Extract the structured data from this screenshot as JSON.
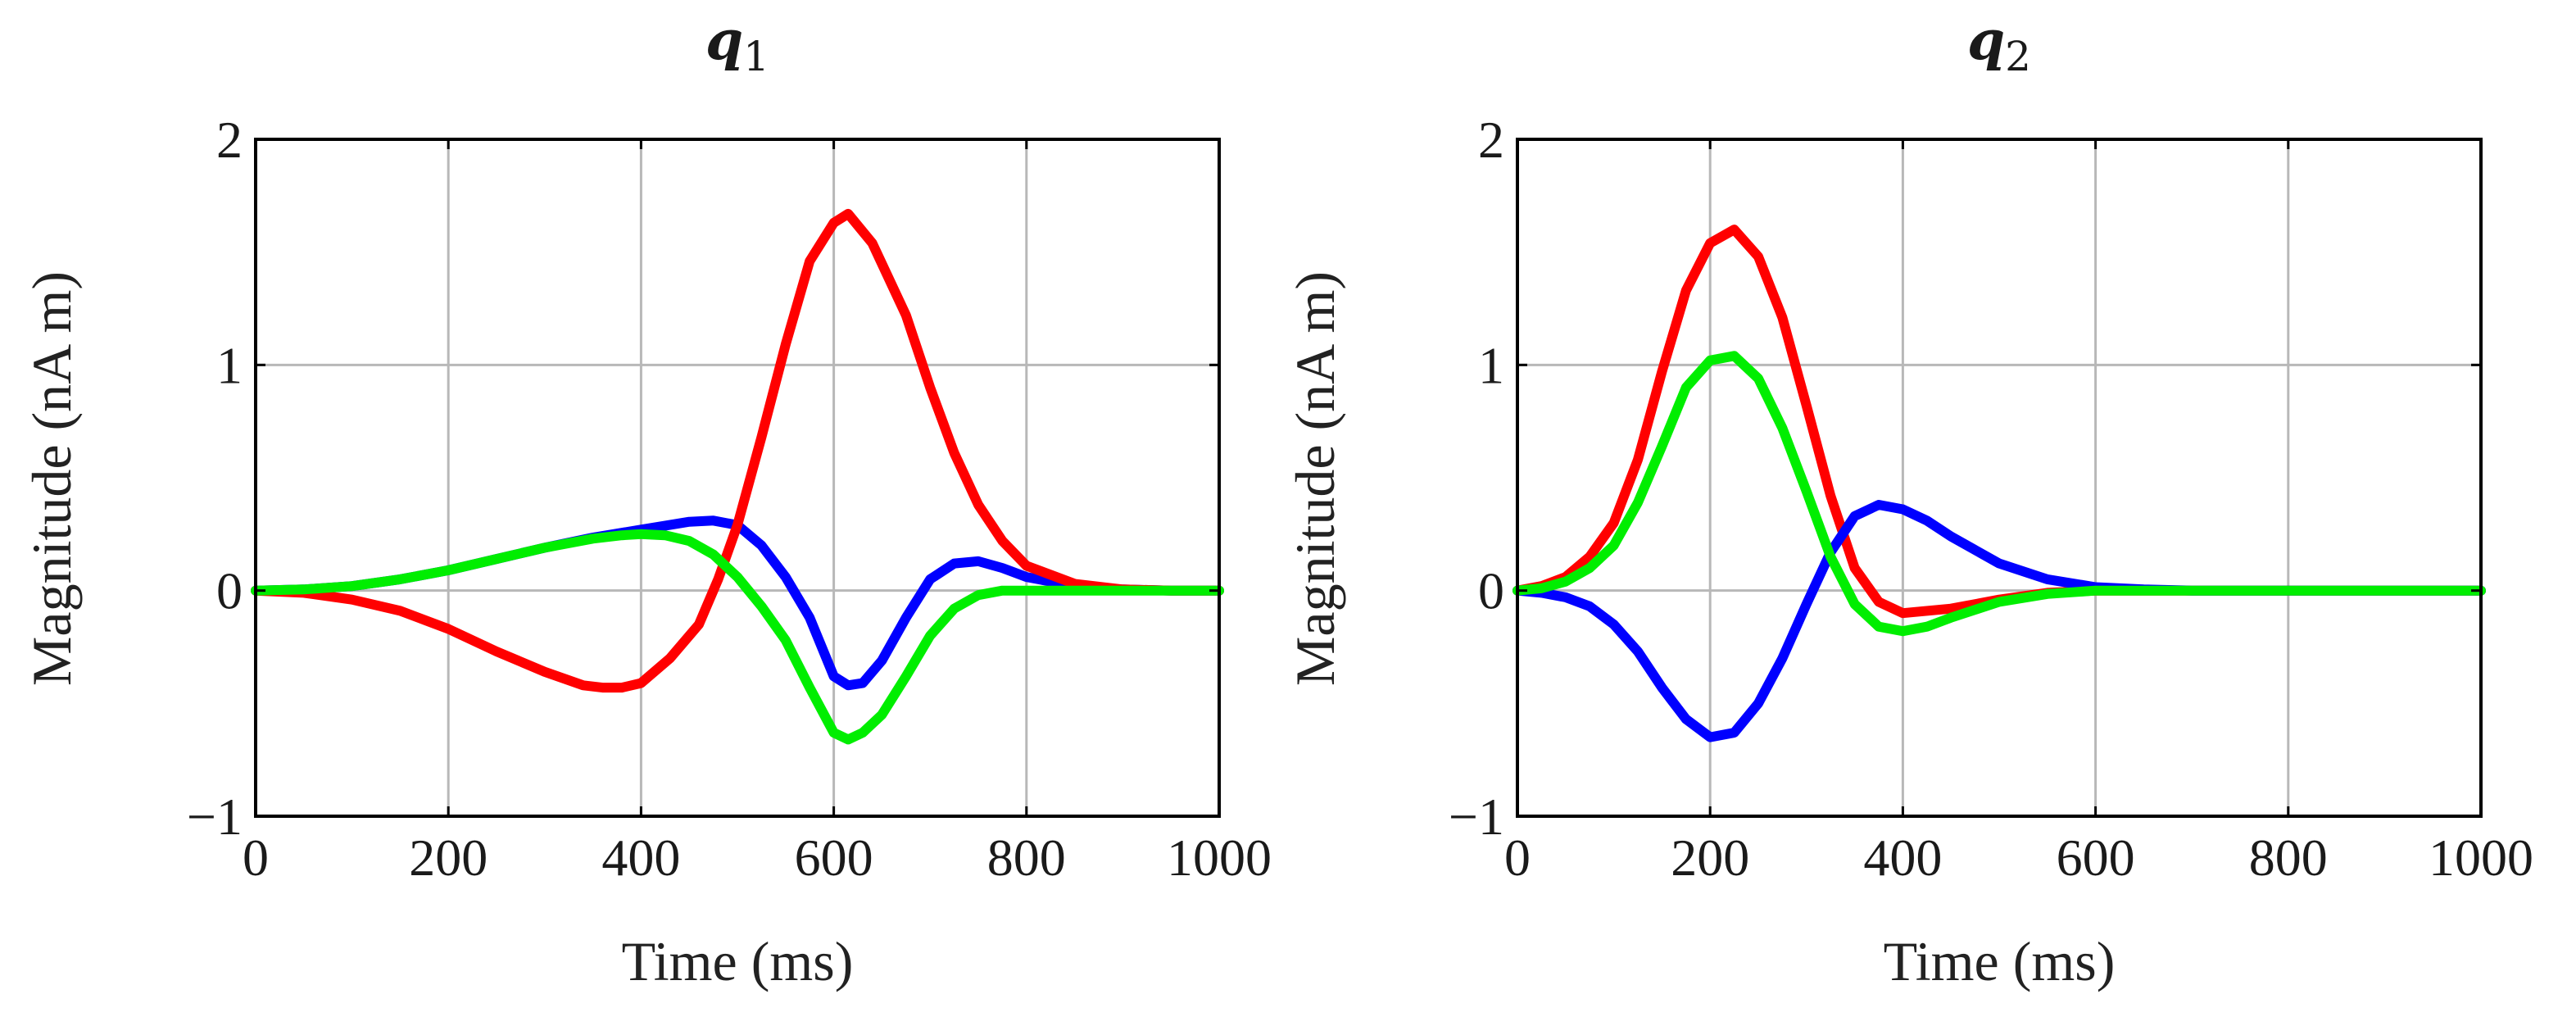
{
  "chart_data": [
    {
      "type": "line",
      "title": "q",
      "title_subscript": "1",
      "xlabel": "Time (ms)",
      "ylabel": "Magnitude (nA m)",
      "xlim": [
        0,
        1000
      ],
      "ylim": [
        -1,
        2
      ],
      "xticks": [
        0,
        200,
        400,
        600,
        800,
        1000
      ],
      "yticks": [
        -1,
        0,
        1,
        2
      ],
      "xtick_labels": [
        "0",
        "200",
        "400",
        "600",
        "800",
        "1000"
      ],
      "ytick_labels": [
        "−1",
        "0",
        "1",
        "2"
      ],
      "grid": true,
      "series": [
        {
          "name": "blue",
          "color": "#0000ff",
          "x": [
            0,
            50,
            100,
            150,
            200,
            250,
            300,
            350,
            400,
            450,
            475,
            500,
            525,
            550,
            575,
            600,
            615,
            630,
            650,
            675,
            700,
            725,
            750,
            775,
            800,
            850,
            900,
            950,
            1000
          ],
          "y": [
            0,
            0.005,
            0.02,
            0.05,
            0.09,
            0.14,
            0.19,
            0.235,
            0.27,
            0.305,
            0.31,
            0.29,
            0.2,
            0.06,
            -0.12,
            -0.38,
            -0.42,
            -0.41,
            -0.31,
            -0.12,
            0.05,
            0.12,
            0.13,
            0.1,
            0.06,
            0.02,
            0.005,
            0,
            0
          ]
        },
        {
          "name": "red",
          "color": "#ff0000",
          "x": [
            0,
            50,
            100,
            150,
            200,
            250,
            300,
            340,
            360,
            380,
            400,
            430,
            460,
            480,
            500,
            525,
            550,
            575,
            600,
            615,
            640,
            675,
            700,
            725,
            750,
            775,
            800,
            850,
            900,
            950,
            1000
          ],
          "y": [
            0,
            -0.01,
            -0.04,
            -0.09,
            -0.17,
            -0.27,
            -0.36,
            -0.42,
            -0.43,
            -0.43,
            -0.41,
            -0.3,
            -0.15,
            0.05,
            0.29,
            0.68,
            1.09,
            1.46,
            1.63,
            1.67,
            1.54,
            1.22,
            0.9,
            0.61,
            0.38,
            0.22,
            0.11,
            0.03,
            0.005,
            0,
            0
          ]
        },
        {
          "name": "green",
          "color": "#00ee00",
          "x": [
            0,
            50,
            100,
            150,
            200,
            250,
            300,
            350,
            380,
            400,
            425,
            450,
            475,
            500,
            525,
            550,
            575,
            600,
            615,
            630,
            650,
            675,
            700,
            725,
            750,
            775,
            800,
            850,
            900,
            950,
            1000
          ],
          "y": [
            0,
            0.005,
            0.02,
            0.05,
            0.09,
            0.14,
            0.19,
            0.23,
            0.245,
            0.25,
            0.245,
            0.22,
            0.16,
            0.06,
            -0.07,
            -0.22,
            -0.43,
            -0.63,
            -0.66,
            -0.63,
            -0.55,
            -0.38,
            -0.2,
            -0.08,
            -0.02,
            0,
            0,
            0,
            0,
            0,
            0
          ]
        }
      ]
    },
    {
      "type": "line",
      "title": "q",
      "title_subscript": "2",
      "xlabel": "Time (ms)",
      "ylabel": "Magnitude (nA m)",
      "xlim": [
        0,
        1000
      ],
      "ylim": [
        -1,
        2
      ],
      "xticks": [
        0,
        200,
        400,
        600,
        800,
        1000
      ],
      "yticks": [
        -1,
        0,
        1,
        2
      ],
      "xtick_labels": [
        "0",
        "200",
        "400",
        "600",
        "800",
        "1000"
      ],
      "ytick_labels": [
        "−1",
        "0",
        "1",
        "2"
      ],
      "grid": true,
      "series": [
        {
          "name": "red",
          "color": "#ff0000",
          "x": [
            0,
            25,
            50,
            75,
            100,
            125,
            150,
            175,
            200,
            225,
            250,
            275,
            300,
            325,
            350,
            375,
            400,
            450,
            500,
            550,
            600,
            650,
            700,
            800,
            900,
            1000
          ],
          "y": [
            0,
            0.02,
            0.06,
            0.15,
            0.3,
            0.58,
            0.97,
            1.33,
            1.54,
            1.6,
            1.48,
            1.21,
            0.82,
            0.42,
            0.1,
            -0.05,
            -0.1,
            -0.08,
            -0.04,
            -0.01,
            0,
            0,
            0,
            0,
            0,
            0
          ]
        },
        {
          "name": "blue",
          "color": "#0000ff",
          "x": [
            0,
            25,
            50,
            75,
            100,
            125,
            150,
            175,
            200,
            225,
            250,
            275,
            300,
            325,
            350,
            375,
            400,
            425,
            450,
            500,
            550,
            600,
            650,
            700,
            800,
            900,
            1000
          ],
          "y": [
            0,
            -0.01,
            -0.03,
            -0.07,
            -0.15,
            -0.27,
            -0.43,
            -0.57,
            -0.65,
            -0.63,
            -0.5,
            -0.3,
            -0.06,
            0.17,
            0.33,
            0.38,
            0.36,
            0.31,
            0.24,
            0.12,
            0.05,
            0.015,
            0.005,
            0,
            0,
            0,
            0
          ]
        },
        {
          "name": "green",
          "color": "#00ee00",
          "x": [
            0,
            25,
            50,
            75,
            100,
            125,
            150,
            175,
            200,
            225,
            250,
            275,
            300,
            325,
            350,
            375,
            400,
            425,
            450,
            500,
            550,
            600,
            650,
            700,
            800,
            900,
            1000
          ],
          "y": [
            0,
            0.01,
            0.04,
            0.1,
            0.2,
            0.39,
            0.64,
            0.9,
            1.02,
            1.04,
            0.94,
            0.72,
            0.44,
            0.15,
            -0.06,
            -0.16,
            -0.18,
            -0.16,
            -0.12,
            -0.05,
            -0.015,
            0,
            0,
            0,
            0,
            0,
            0
          ]
        }
      ]
    }
  ]
}
